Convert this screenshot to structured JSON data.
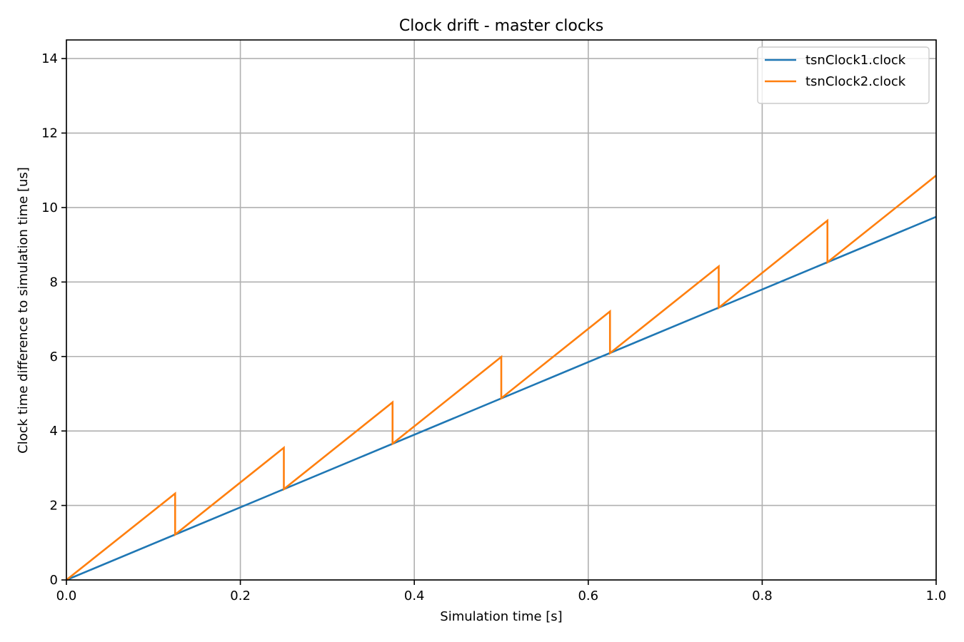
{
  "chart_data": {
    "type": "line",
    "title": "Clock drift - master clocks",
    "xlabel": "Simulation time [s]",
    "ylabel": "Clock time difference to simulation time [us]",
    "xlim": [
      0.0,
      1.0
    ],
    "ylim": [
      0,
      14.5
    ],
    "xticks": [
      0.0,
      0.2,
      0.4,
      0.6,
      0.8,
      1.0
    ],
    "xtick_labels": [
      "0.0",
      "0.2",
      "0.4",
      "0.6",
      "0.8",
      "1.0"
    ],
    "yticks": [
      0,
      2,
      4,
      6,
      8,
      10,
      12,
      14
    ],
    "ytick_labels": [
      "0",
      "2",
      "4",
      "6",
      "8",
      "10",
      "12",
      "14"
    ],
    "grid": true,
    "legend_position": "top-right",
    "series": [
      {
        "name": "tsnClock1.clock",
        "color": "#1f77b4",
        "x": [
          0.0,
          1.0
        ],
        "y": [
          0.0,
          9.75
        ]
      },
      {
        "name": "tsnClock2.clock",
        "color": "#ff7f0e",
        "x": [
          0.0,
          0.125,
          0.125,
          0.25,
          0.25,
          0.375,
          0.375,
          0.5,
          0.5,
          0.625,
          0.625,
          0.75,
          0.75,
          0.875,
          0.875,
          1.0
        ],
        "y": [
          0.0,
          2.32,
          1.22,
          3.55,
          2.44,
          4.77,
          3.66,
          5.99,
          4.88,
          7.21,
          6.09,
          8.42,
          7.31,
          9.65,
          8.53,
          10.86
        ]
      }
    ]
  }
}
